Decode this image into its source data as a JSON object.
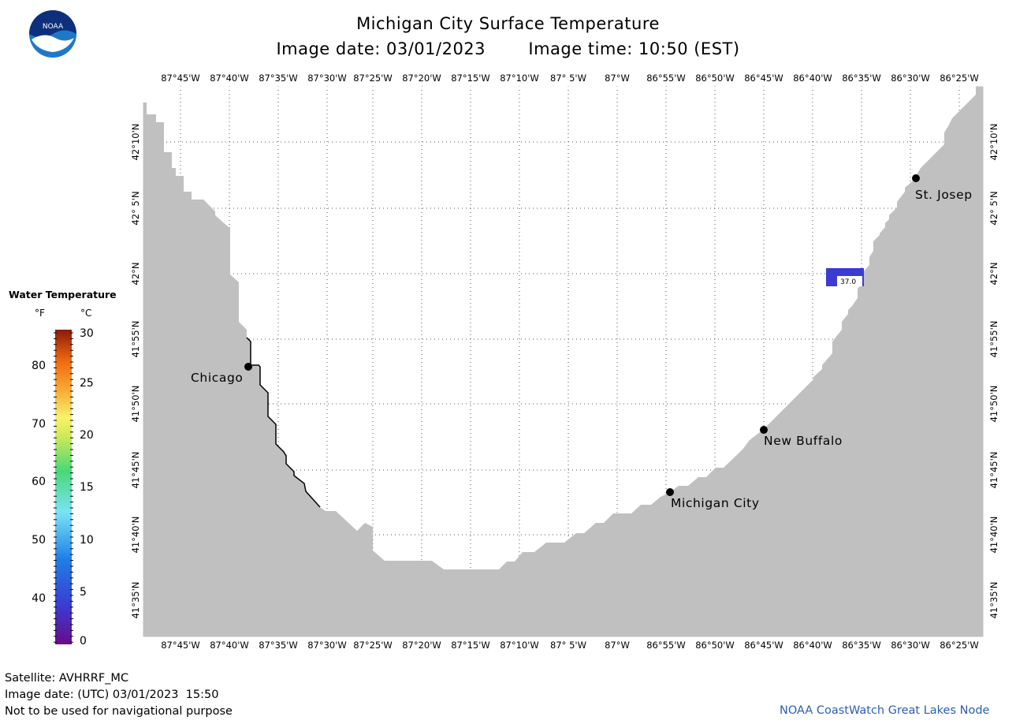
{
  "title": "Michigan City Surface Temperature",
  "image_date_label": "Image date: 03/01/2023",
  "image_time_label": "Image time: 10:50 (EST)",
  "logo": {
    "text": "NOAA",
    "colors": [
      "#1e78c8",
      "#0d2f7c",
      "#ffffff"
    ]
  },
  "map": {
    "land_color": "#c0c0c0",
    "water_color": "#ffffff",
    "grid": true,
    "longitude_labels": [
      "87°45'W",
      "87°40'W",
      "87°35'W",
      "87°30'W",
      "87°25'W",
      "87°20'W",
      "87°15'W",
      "87°10'W",
      "87° 5'W",
      "87°W",
      "86°55'W",
      "86°50'W",
      "86°45'W",
      "86°40'W",
      "86°35'W",
      "86°30'W",
      "86°25'W"
    ],
    "latitude_labels": [
      "42°10'N",
      "42° 5'N",
      "42°N",
      "41°55'N",
      "41°50'N",
      "41°45'N",
      "41°40'N",
      "41°35'N"
    ],
    "cities": [
      {
        "name": "Chicago"
      },
      {
        "name": "Michigan City"
      },
      {
        "name": "New Buffalo"
      },
      {
        "name": "St. Josep"
      }
    ],
    "sample_value": "37.0",
    "sample_color": "#3b3bd1"
  },
  "legend": {
    "title": "Water Temperature",
    "unit_f": "°F",
    "unit_c": "°C",
    "fahrenheit_ticks": [
      "80",
      "70",
      "60",
      "50",
      "40"
    ],
    "celsius_ticks": [
      "30",
      "25",
      "20",
      "15",
      "10",
      "5",
      "0"
    ]
  },
  "footer": {
    "satellite": "Satellite: AVHRRF_MC",
    "utc_date": "Image date: (UTC) 03/01/2023  15:50",
    "warning": "Not to be used for navigational purpose",
    "credit": "NOAA CoastWatch Great Lakes Node"
  }
}
